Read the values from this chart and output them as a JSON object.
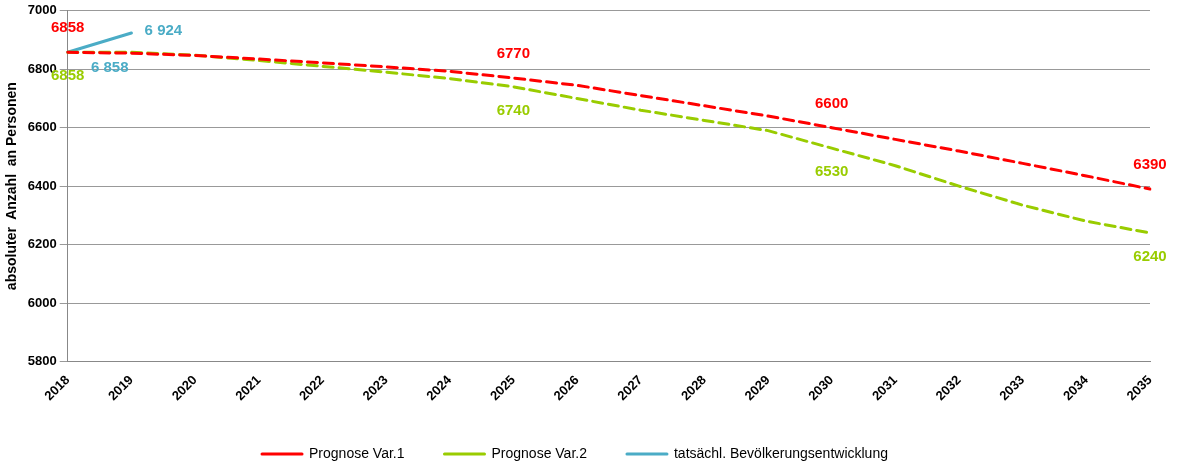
{
  "chart_data": {
    "type": "line",
    "ylabel": "absoluter  Anzahl  an Personen",
    "categories": [
      "2018",
      "2019",
      "2020",
      "2021",
      "2022",
      "2023",
      "2024",
      "2025",
      "2026",
      "2027",
      "2028",
      "2029",
      "2030",
      "2031",
      "2032",
      "2033",
      "2034",
      "2035"
    ],
    "series": [
      {
        "name": "Prognose Var.1",
        "color": "#ff0000",
        "line_style": "dashed",
        "values": [
          6858,
          6855,
          6847,
          6835,
          6822,
          6808,
          6793,
          6770,
          6745,
          6710,
          6675,
          6640,
          6600,
          6560,
          6520,
          6478,
          6435,
          6390
        ],
        "value_labels": [
          "6858",
          null,
          null,
          null,
          null,
          null,
          null,
          "6770",
          null,
          null,
          null,
          null,
          "6600",
          null,
          null,
          null,
          null,
          "6390"
        ]
      },
      {
        "name": "Prognose Var.2",
        "color": "#99cc00",
        "line_style": "dashed",
        "values": [
          6858,
          6858,
          6848,
          6830,
          6810,
          6790,
          6768,
          6740,
          6700,
          6660,
          6625,
          6590,
          6530,
          6470,
          6400,
          6335,
          6280,
          6240
        ],
        "value_labels": [
          "6858",
          null,
          null,
          null,
          null,
          null,
          null,
          "6740",
          null,
          null,
          null,
          null,
          "6530",
          null,
          null,
          null,
          null,
          "6240"
        ]
      },
      {
        "name": "tatsächl. Bevölkerungsentwicklung",
        "color": "#4bacc6",
        "line_style": "solid",
        "values": [
          6858,
          6924,
          null,
          null,
          null,
          null,
          null,
          null,
          null,
          null,
          null,
          null,
          null,
          null,
          null,
          null,
          null,
          null
        ],
        "value_labels": [
          "6 858",
          "6 924",
          null,
          null,
          null,
          null,
          null,
          null,
          null,
          null,
          null,
          null,
          null,
          null,
          null,
          null,
          null,
          null
        ]
      }
    ],
    "ylim": [
      5800,
      7000
    ],
    "yticks": [
      5800,
      6000,
      6200,
      6400,
      6600,
      6800,
      7000
    ],
    "grid": "y",
    "legend": "bottom",
    "marker": "none"
  }
}
